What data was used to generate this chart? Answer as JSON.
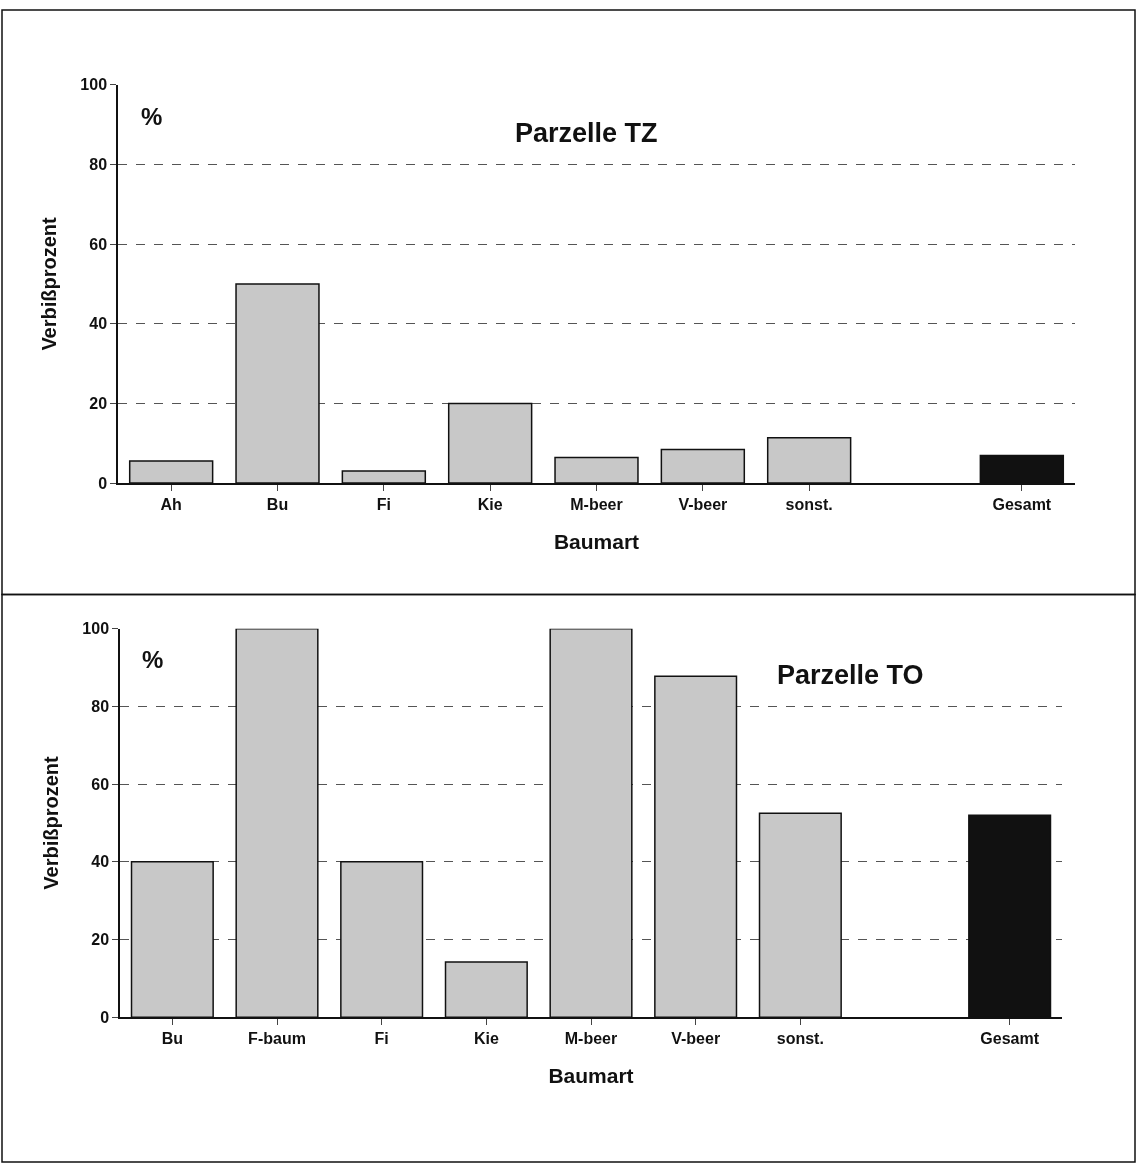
{
  "chart_data": [
    {
      "type": "bar",
      "title": "Parzelle TZ",
      "xlabel": "Baumart",
      "ylabel": "Verbißprozent",
      "annotations": [
        "%"
      ],
      "categories": [
        "Ah",
        "Bu",
        "Fi",
        "Kie",
        "M-beer",
        "V-beer",
        "sonst.",
        null,
        "Gesamt"
      ],
      "values": [
        5.5,
        50,
        3,
        20,
        6.4,
        8.4,
        11.4,
        null,
        6.9
      ],
      "colors": [
        "#c8c8c8",
        "#c8c8c8",
        "#c8c8c8",
        "#c8c8c8",
        "#c8c8c8",
        "#c8c8c8",
        "#c8c8c8",
        "#c8c8c8",
        "#111111"
      ],
      "ylim": [
        0,
        100
      ],
      "yticks": [
        0,
        20,
        40,
        60,
        80,
        100
      ],
      "grid": "y"
    },
    {
      "type": "bar",
      "title": "Parzelle TO",
      "xlabel": "Baumart",
      "ylabel": "Verbißprozent",
      "annotations": [
        "%"
      ],
      "categories": [
        "Bu",
        "F-baum",
        "Fi",
        "Kie",
        "M-beer",
        "V-beer",
        "sonst.",
        null,
        "Gesamt"
      ],
      "values": [
        40,
        100,
        40,
        14.2,
        100,
        87.8,
        52.5,
        null,
        52
      ],
      "colors": [
        "#c8c8c8",
        "#c8c8c8",
        "#c8c8c8",
        "#c8c8c8",
        "#c8c8c8",
        "#c8c8c8",
        "#c8c8c8",
        "#c8c8c8",
        "#111111"
      ],
      "ylim": [
        0,
        100
      ],
      "yticks": [
        0,
        20,
        40,
        60,
        80,
        100
      ],
      "grid": "y"
    }
  ]
}
